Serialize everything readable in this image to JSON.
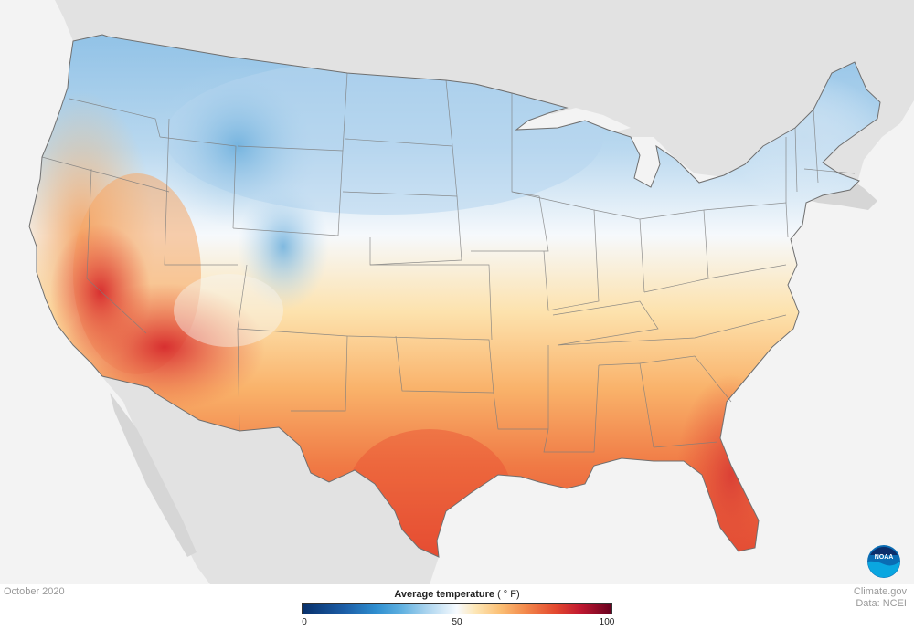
{
  "map": {
    "date": "October 2020",
    "credit_line1": "Climate.gov",
    "credit_line2": "Data: NCEI",
    "colors": {
      "land_background": "#e2e2e2",
      "water": "#f3f3f3",
      "border": "#7d7d7d"
    }
  },
  "legend": {
    "title": "Average temperature",
    "unit": "( ° F)",
    "min": 0,
    "max": 100,
    "ticks": [
      "0",
      "50",
      "100"
    ],
    "colors": [
      "#08306b",
      "#2f8fd0",
      "#a9d3ee",
      "#f7fbff",
      "#fbbf74",
      "#e3482f",
      "#67001f"
    ]
  },
  "logo": {
    "text": "NOAA"
  }
}
